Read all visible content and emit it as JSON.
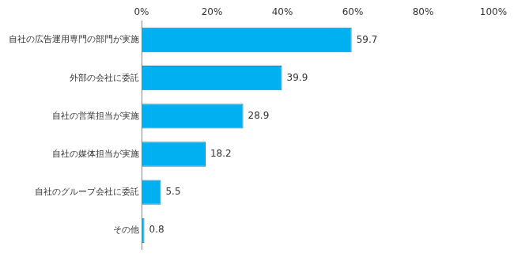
{
  "chart_data": {
    "type": "bar",
    "orientation": "horizontal",
    "categories": [
      "自社の広告運用専門の部門が実施",
      "外部の会社に委託",
      "自社の営業担当が実施",
      "自社の媒体担当が実施",
      "自社のグループ会社に委託",
      "その他"
    ],
    "values": [
      59.7,
      39.9,
      28.9,
      18.2,
      5.5,
      0.8
    ],
    "color": "#00b0f0",
    "xlim": [
      0,
      100
    ],
    "xticks": [
      {
        "value": 0,
        "label": "0%"
      },
      {
        "value": 20,
        "label": "20%"
      },
      {
        "value": 40,
        "label": "40%"
      },
      {
        "value": 60,
        "label": "60%"
      },
      {
        "value": 80,
        "label": "80%"
      },
      {
        "value": 100,
        "label": "100%"
      }
    ],
    "grid": false,
    "data_labels": true
  }
}
